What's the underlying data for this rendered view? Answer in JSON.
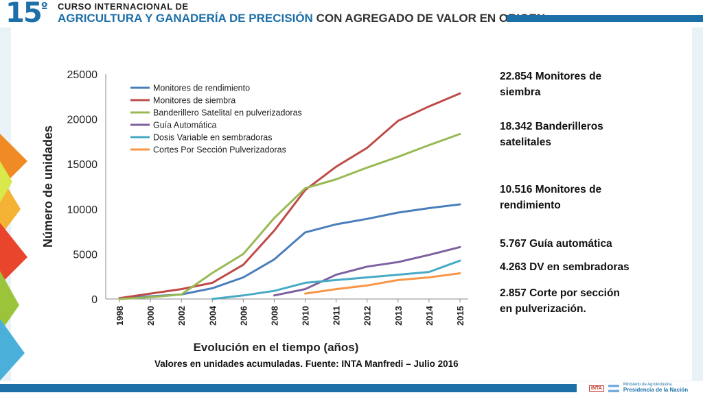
{
  "header": {
    "number": "15",
    "ordinal": "º",
    "line1": "CURSO INTERNACIONAL DE",
    "line2_blue": "AGRICULTURA Y GANADERÍA DE PRECISIÓN",
    "line2_dark": "CON AGREGADO DE VALOR EN ORIGEN",
    "accent_color": "#1d6fa8"
  },
  "stats": [
    "22.854 Monitores de\nsiembra",
    "18.342 Banderilleros\nsatelitales",
    "10.516 Monitores de\nrendimiento",
    "5.767 Guía automática",
    "4.263 DV en sembradoras",
    "2.857 Corte por sección\n en pulverización."
  ],
  "source": "Valores en unidades acumuladas. Fuente: INTA Manfredi – Julio 2016",
  "footer": {
    "inta": "INTA",
    "ministry_line1": "Ministerio de Agroindustria",
    "ministry_line2": "Presidencia de la Nación"
  },
  "chart_data": {
    "type": "line",
    "title": "",
    "xlabel": "Evolución en el tiempo (años)",
    "ylabel": "Número de unidades",
    "categories": [
      "1998",
      "2000",
      "2002",
      "2004",
      "2006",
      "2008",
      "2010",
      "2011",
      "2012",
      "2013",
      "2014",
      "2015"
    ],
    "ylim": [
      0,
      25000
    ],
    "yticks": [
      "0",
      "5000",
      "10000",
      "15000",
      "20000",
      "25000"
    ],
    "legend_position": "top-left",
    "series": [
      {
        "name": "Monitores de rendimiento",
        "color": "#4a7ebb",
        "values": [
          100,
          300,
          500,
          1200,
          2400,
          4400,
          7400,
          8300,
          8900,
          9600,
          10100,
          10516
        ]
      },
      {
        "name": "Monitores de siembra",
        "color": "#be4b48",
        "values": [
          100,
          600,
          1100,
          1800,
          3800,
          7600,
          12100,
          14700,
          16800,
          19800,
          21400,
          22854
        ]
      },
      {
        "name": "Banderillero Satelital en pulverizadoras",
        "color": "#98b954",
        "values": [
          0,
          200,
          500,
          2900,
          5000,
          9000,
          12300,
          13300,
          14600,
          15800,
          17100,
          18342
        ]
      },
      {
        "name": "Guía Automática",
        "color": "#7d60a0",
        "values": [
          null,
          null,
          null,
          null,
          null,
          400,
          1100,
          2700,
          3600,
          4100,
          4900,
          5767
        ]
      },
      {
        "name": "Dosis Variable en sembradoras",
        "color": "#46aac5",
        "values": [
          null,
          null,
          null,
          0,
          400,
          900,
          1800,
          2100,
          2400,
          2700,
          3000,
          4263
        ]
      },
      {
        "name": "Cortes Por Sección Pulverizadoras",
        "color": "#f79646",
        "values": [
          null,
          null,
          null,
          null,
          null,
          null,
          600,
          1100,
          1500,
          2100,
          2400,
          2857
        ]
      }
    ]
  }
}
